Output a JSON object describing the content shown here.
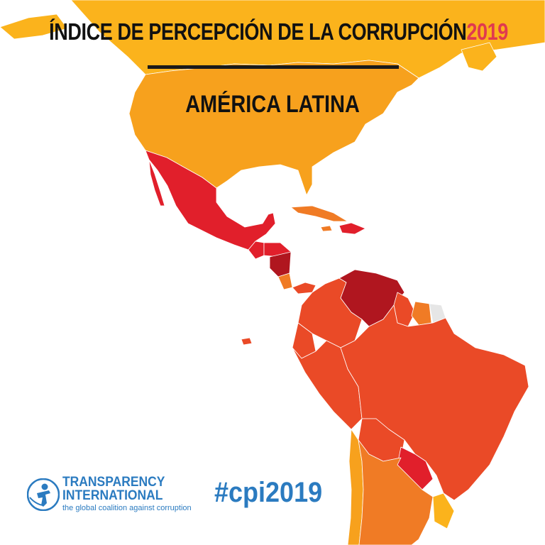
{
  "title": {
    "main": "ÍNDICE DE PERCEPCIÓN DE LA CORRUPCIÓN",
    "year": "2019"
  },
  "subtitle": "AMÉRICA LATINA",
  "hashtag": "#cpi2019",
  "logo": {
    "line1": "TRANSPARENCY",
    "line2": "INTERNATIONAL",
    "tagline": "the global coalition against corruption",
    "icon": "transparency-international-person-icon"
  },
  "colors": {
    "very_high": "#fbb31c",
    "high": "#f7a11d",
    "upper_mid": "#f07b25",
    "mid": "#ea4a27",
    "low": "#e11f2b",
    "very_low": "#b0161f",
    "no_data": "#e6e6e6",
    "brand_blue": "#2b7bc0",
    "title_year": "#e03a4f"
  }
}
